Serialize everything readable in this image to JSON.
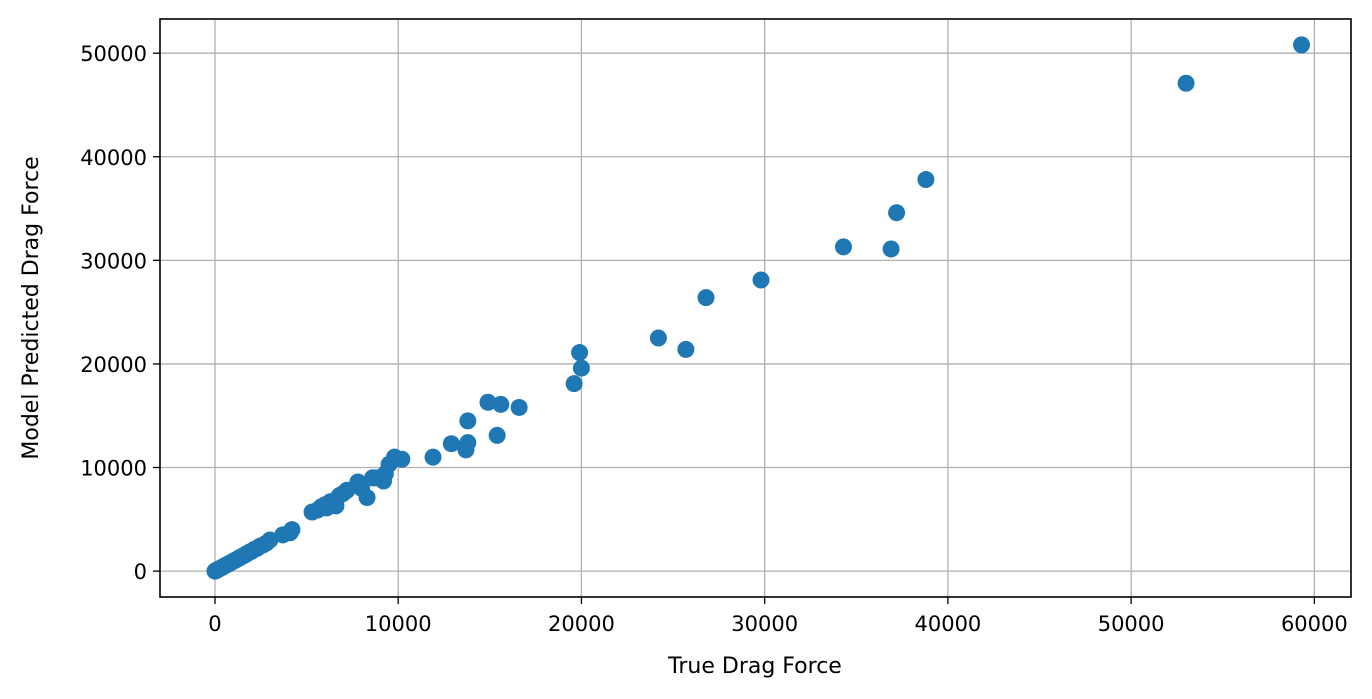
{
  "chart_data": {
    "type": "scatter",
    "title": "",
    "xlabel": "True Drag Force",
    "ylabel": "Model Predicted Drag Force",
    "xlim": [
      -3000,
      62000
    ],
    "ylim": [
      -2500,
      53300
    ],
    "xticks": [
      0,
      10000,
      20000,
      30000,
      40000,
      50000,
      60000
    ],
    "yticks": [
      0,
      10000,
      20000,
      30000,
      40000,
      50000
    ],
    "xtick_labels": [
      "0",
      "10000",
      "20000",
      "30000",
      "40000",
      "50000",
      "60000"
    ],
    "ytick_labels": [
      "0",
      "10000",
      "20000",
      "30000",
      "40000",
      "50000"
    ],
    "grid": true,
    "marker_color": "#1f77b4",
    "series": [
      {
        "x": [
          0,
          40,
          80,
          120,
          160,
          220,
          300,
          380,
          450,
          520,
          600,
          700,
          800,
          900,
          1000,
          1100,
          1200,
          1300,
          1400,
          1500,
          1600,
          1700,
          1800,
          1900,
          2000,
          2150,
          2300,
          2450,
          2600,
          2800,
          3000,
          3700,
          4100,
          4200,
          5300,
          5600,
          5800,
          6000,
          6100,
          6300,
          6500,
          6600,
          6800,
          7000,
          7200,
          7800,
          8000,
          8300,
          8600,
          8800,
          9200,
          9300,
          9500,
          9800,
          10200,
          11900,
          12900,
          13700,
          13800,
          13800,
          14900,
          15400,
          15600,
          16600,
          19600,
          19900,
          20000,
          24200,
          25700,
          26800,
          29800,
          34300,
          36900,
          37200,
          38800,
          53000,
          59300
        ],
        "y": [
          0,
          30,
          70,
          110,
          150,
          210,
          280,
          350,
          420,
          490,
          570,
          660,
          760,
          850,
          950,
          1050,
          1130,
          1250,
          1330,
          1450,
          1520,
          1650,
          1720,
          1850,
          1920,
          2100,
          2200,
          2400,
          2500,
          2700,
          3000,
          3500,
          3700,
          4000,
          5700,
          5900,
          6200,
          6400,
          6100,
          6700,
          6800,
          6300,
          7300,
          7500,
          7800,
          8600,
          8000,
          7100,
          9000,
          9000,
          8700,
          9400,
          10300,
          11000,
          10800,
          11000,
          12300,
          11700,
          12400,
          14500,
          16300,
          13100,
          16100,
          15800,
          18100,
          21100,
          19600,
          22500,
          21400,
          26400,
          28100,
          31300,
          31100,
          34600,
          37800,
          47100,
          50800
        ]
      }
    ]
  }
}
